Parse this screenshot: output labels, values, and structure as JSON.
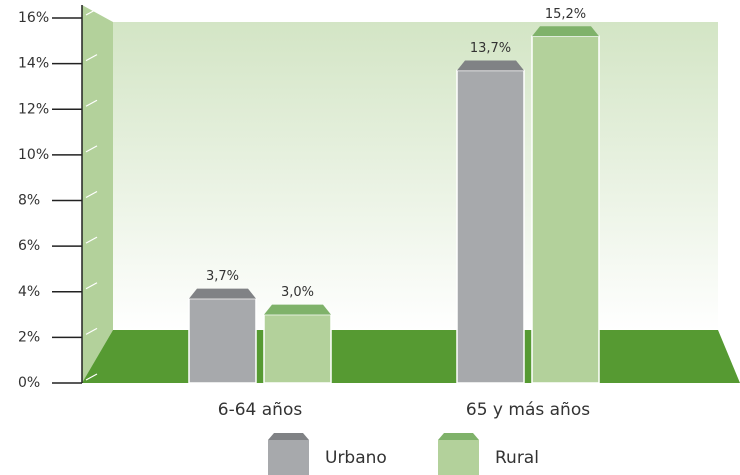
{
  "chart_data": {
    "type": "bar",
    "categories": [
      "6-64 años",
      "65 y más años"
    ],
    "series": [
      {
        "name": "Urbano",
        "color": "#a7a9ac",
        "cap_color": "#808285",
        "values": [
          3.7,
          13.7
        ],
        "value_labels": [
          "3,7%",
          "13,7%"
        ]
      },
      {
        "name": "Rural",
        "color": "#b3d19b",
        "cap_color": "#7fb26a",
        "values": [
          3.0,
          15.2
        ],
        "value_labels": [
          "3,0%",
          "15,2%"
        ]
      }
    ],
    "ylim": [
      0,
      16
    ],
    "yticks": [
      {
        "value": 0,
        "label": "0%"
      },
      {
        "value": 2,
        "label": "2%"
      },
      {
        "value": 4,
        "label": "4%"
      },
      {
        "value": 6,
        "label": "6%"
      },
      {
        "value": 8,
        "label": "8%"
      },
      {
        "value": 10,
        "label": "10%"
      },
      {
        "value": 12,
        "label": "12%"
      },
      {
        "value": 14,
        "label": "14%"
      },
      {
        "value": 16,
        "label": "16%"
      }
    ],
    "legend": "bottom"
  }
}
